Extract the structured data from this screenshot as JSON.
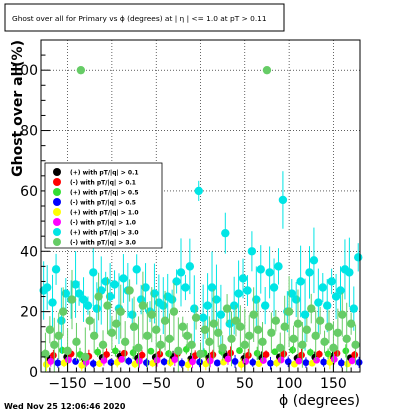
{
  "title": "Ghost over all for Primary vs ϕ (degrees) at | η | <= 1.0 at pT > 0.11",
  "timestamp": "Wed Nov 25 12:06:46 2020",
  "chart_data": {
    "type": "scatter",
    "title": "Ghost over all for Primary vs ϕ (degrees) at | η | <= 1.0 at pT > 0.11",
    "xlabel": "ϕ (degrees)",
    "ylabel": "Ghost over all(%)",
    "xlim": [
      -180,
      180
    ],
    "ylim": [
      0,
      110
    ],
    "x_ticks": [
      -150,
      -100,
      -50,
      0,
      50,
      100,
      150
    ],
    "y_ticks": [
      0,
      20,
      40,
      60,
      80,
      100
    ],
    "grid": true,
    "legend_position": "left",
    "series": [
      {
        "name": "(+) with pT/|q| > 0.1",
        "color": "#000000",
        "x": [
          -171,
          -151,
          -131,
          -111,
          -91,
          -71,
          -51,
          -31,
          -11,
          9,
          29,
          49,
          69,
          89,
          109,
          129,
          149,
          169
        ],
        "y": [
          4.5,
          5.0,
          4.2,
          4.8,
          5.2,
          4.6,
          4.9,
          5.1,
          4.4,
          4.7,
          5.3,
          4.5,
          4.8,
          5.0,
          4.6,
          4.9,
          5.2,
          4.7
        ]
      },
      {
        "name": "(-) with pT/|q| > 0.1",
        "color": "#ff0000",
        "x": [
          -166,
          -146,
          -126,
          -106,
          -86,
          -66,
          -46,
          -26,
          -6,
          14,
          34,
          54,
          74,
          94,
          114,
          134,
          154,
          174
        ],
        "y": [
          5.5,
          6.0,
          5.2,
          5.8,
          6.2,
          5.6,
          5.9,
          6.1,
          5.4,
          5.7,
          6.3,
          5.5,
          5.8,
          6.0,
          5.6,
          5.9,
          6.2,
          5.7
        ]
      },
      {
        "name": "(+) with pT/|q| > 0.5",
        "color": "#33dd33",
        "x": [
          -176,
          -156,
          -136,
          -116,
          -96,
          -76,
          -56,
          -36,
          -16,
          4,
          24,
          44,
          64,
          84,
          104,
          124,
          144,
          164
        ],
        "y": [
          6.0,
          7.2,
          5.8,
          6.6,
          7.0,
          6.4,
          6.9,
          6.1,
          7.5,
          6.3,
          6.8,
          7.1,
          6.2,
          6.7,
          7.3,
          6.5,
          6.0,
          7.0
        ]
      },
      {
        "name": "(-) with pT/|q| > 0.5",
        "color": "#0000ff",
        "x": [
          -161,
          -141,
          -121,
          -101,
          -81,
          -61,
          -41,
          -21,
          -1,
          19,
          39,
          59,
          79,
          99,
          119,
          139,
          159,
          179
        ],
        "y": [
          3.0,
          3.5,
          2.8,
          3.2,
          3.6,
          3.1,
          3.4,
          2.9,
          3.3,
          3.0,
          3.5,
          3.2,
          2.9,
          3.4,
          3.1,
          3.3,
          3.0,
          3.2
        ]
      },
      {
        "name": "(+) with pT/|q| > 1.0",
        "color": "#ffff00",
        "x": [
          -174,
          -154,
          -134,
          -114,
          -94,
          -74,
          -54,
          -34,
          -14,
          6,
          26,
          46,
          66,
          86,
          106,
          126,
          146,
          166
        ],
        "y": [
          2.5,
          3.0,
          2.2,
          2.8,
          3.2,
          2.6,
          2.9,
          3.1,
          2.4,
          2.7,
          3.3,
          2.5,
          2.8,
          3.0,
          2.6,
          2.9,
          3.2,
          2.7
        ]
      },
      {
        "name": "(-) with pT/|q| > 1.0",
        "color": "#ff00ff",
        "x": [
          -169,
          -149,
          -129,
          -109,
          -89,
          -69,
          -49,
          -29,
          -9,
          11,
          31,
          51,
          71,
          91,
          111,
          131,
          151,
          171
        ],
        "y": [
          3.5,
          4.0,
          3.2,
          3.8,
          4.2,
          3.6,
          3.9,
          4.1,
          3.4,
          3.7,
          4.3,
          3.5,
          3.8,
          4.0,
          3.6,
          3.9,
          4.2,
          3.7
        ]
      },
      {
        "name": "(+) with pT/|q| > 3.0",
        "color": "#00e5e5",
        "x": [
          -177,
          -173,
          -167,
          -163,
          -157,
          -152,
          -146,
          -141,
          -137,
          -132,
          -127,
          -121,
          -117,
          -112,
          -107,
          -102,
          -97,
          -92,
          -87,
          -82,
          -77,
          -72,
          -67,
          -62,
          -57,
          -52,
          -47,
          -42,
          -37,
          -32,
          -27,
          -22,
          -17,
          -12,
          -7,
          -2,
          3,
          8,
          13,
          18,
          23,
          28,
          33,
          38,
          43,
          48,
          53,
          58,
          63,
          68,
          73,
          78,
          83,
          88,
          93,
          98,
          103,
          108,
          113,
          118,
          123,
          128,
          133,
          138,
          143,
          148,
          153,
          158,
          163,
          168,
          173,
          178
        ],
        "y": [
          27,
          28,
          23,
          34,
          17,
          26,
          24,
          29,
          26,
          24,
          22,
          33,
          21,
          27,
          30,
          25,
          29,
          21,
          31,
          27,
          19,
          34,
          24,
          28,
          20,
          26,
          23,
          22,
          25,
          24,
          30,
          33,
          28,
          35,
          21,
          60,
          18,
          22,
          28,
          24,
          19,
          46,
          16,
          22,
          26,
          31,
          27,
          40,
          24,
          34,
          22,
          33,
          28,
          35,
          57,
          20,
          26,
          24,
          30,
          19,
          33,
          37,
          23,
          28,
          22,
          30,
          25,
          27,
          34,
          33,
          21,
          38
        ]
      },
      {
        "name": "(-) with pT/|q| > 3.0",
        "color": "#66cc66",
        "x": [
          -175,
          -170,
          -165,
          -160,
          -155,
          -150,
          -145,
          -140,
          -135,
          -130,
          -125,
          -120,
          -115,
          -110,
          -105,
          -100,
          -95,
          -90,
          -85,
          -80,
          -75,
          -70,
          -65,
          -60,
          -55,
          -50,
          -45,
          -40,
          -35,
          -30,
          -25,
          -20,
          -15,
          -10,
          -5,
          0,
          5,
          10,
          15,
          20,
          25,
          30,
          35,
          40,
          45,
          50,
          55,
          60,
          65,
          70,
          75,
          80,
          85,
          90,
          95,
          100,
          105,
          110,
          115,
          120,
          125,
          130,
          135,
          140,
          145,
          150,
          155,
          160,
          165,
          170,
          175
        ],
        "y": [
          6,
          14,
          9,
          12,
          20,
          7,
          24,
          10,
          100,
          5,
          17,
          12,
          25,
          9,
          22,
          13,
          16,
          20,
          10,
          27,
          15,
          8,
          22,
          12,
          19,
          14,
          9,
          17,
          11,
          20,
          7,
          15,
          12,
          9,
          18,
          6,
          14,
          10,
          16,
          13,
          8,
          21,
          11,
          17,
          15,
          9,
          12,
          19,
          14,
          10,
          100,
          13,
          17,
          8,
          15,
          20,
          11,
          16,
          9,
          14,
          21,
          12,
          17,
          10,
          15,
          8,
          13,
          19,
          11,
          16,
          9
        ]
      }
    ]
  }
}
